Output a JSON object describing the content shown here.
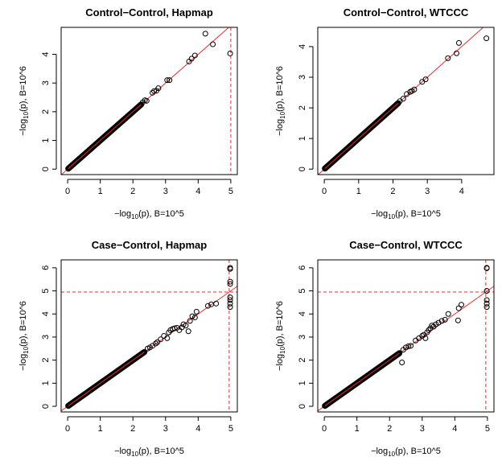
{
  "chart_data": [
    {
      "type": "scatter",
      "title": "Control−Control, Hapmap",
      "xlabel": {
        "prefix": "−log",
        "sub": "10",
        "suffix": "(p), B=10^5"
      },
      "ylabel": {
        "prefix": "−log",
        "sub": "10",
        "suffix": "(p), B=10^6"
      },
      "xlim": [
        0,
        5
      ],
      "ylim": [
        0,
        4.75
      ],
      "xticks": [
        0,
        1,
        2,
        3,
        4,
        5
      ],
      "yticks": [
        0,
        1,
        2,
        3,
        4
      ],
      "diagonal_max": 5.1,
      "diagonal_color": "#e03030",
      "point_color": "#000000",
      "ref_lines": {
        "x": 5,
        "y": null,
        "color": "#e03030",
        "style": "dashed"
      },
      "dense_segment": [
        0.02,
        2.25
      ],
      "points": [
        [
          2.3,
          2.33
        ],
        [
          2.37,
          2.4
        ],
        [
          2.42,
          2.38
        ],
        [
          2.6,
          2.66
        ],
        [
          2.65,
          2.72
        ],
        [
          2.72,
          2.73
        ],
        [
          2.78,
          2.82
        ],
        [
          3.05,
          3.1
        ],
        [
          3.12,
          3.1
        ],
        [
          3.72,
          3.75
        ],
        [
          3.8,
          3.85
        ],
        [
          3.9,
          3.96
        ],
        [
          4.22,
          4.72
        ],
        [
          4.45,
          4.35
        ],
        [
          4.98,
          4.03
        ]
      ]
    },
    {
      "type": "scatter",
      "title": "Control−Control, WTCCC",
      "xlabel": {
        "prefix": "−log",
        "sub": "10",
        "suffix": "(p), B=10^5"
      },
      "ylabel": {
        "prefix": "−log",
        "sub": "10",
        "suffix": "(p), B=10^6"
      },
      "xlim": [
        0,
        4.75
      ],
      "ylim": [
        0,
        4.45
      ],
      "xticks": [
        0,
        1,
        2,
        3,
        4
      ],
      "yticks": [
        0,
        1,
        2,
        3,
        4
      ],
      "diagonal_max": 4.9,
      "diagonal_color": "#e03030",
      "point_color": "#000000",
      "ref_lines": null,
      "dense_segment": [
        0.02,
        2.15
      ],
      "points": [
        [
          2.2,
          2.22
        ],
        [
          2.3,
          2.3
        ],
        [
          2.4,
          2.45
        ],
        [
          2.5,
          2.52
        ],
        [
          2.55,
          2.55
        ],
        [
          2.62,
          2.6
        ],
        [
          2.85,
          2.85
        ],
        [
          2.95,
          2.93
        ],
        [
          3.6,
          3.62
        ],
        [
          3.85,
          3.78
        ],
        [
          3.92,
          4.12
        ],
        [
          4.72,
          4.27
        ]
      ]
    },
    {
      "type": "scatter",
      "title": "Case−Control, Hapmap",
      "xlabel": {
        "prefix": "−log",
        "sub": "10",
        "suffix": "(p), B=10^5"
      },
      "ylabel": {
        "prefix": "−log",
        "sub": "10",
        "suffix": "(p), B=10^6"
      },
      "xlim": [
        0,
        5
      ],
      "ylim": [
        0,
        6.1
      ],
      "xticks": [
        0,
        1,
        2,
        3,
        4,
        5
      ],
      "yticks": [
        0,
        1,
        2,
        3,
        4,
        5,
        6
      ],
      "diagonal_max": 5.2,
      "diagonal_color": "#e03030",
      "point_color": "#000000",
      "ref_lines": {
        "x": 4.95,
        "y": 4.95,
        "color": "#e03030",
        "style": "dashed"
      },
      "dense_segment": [
        0.02,
        2.35
      ],
      "points": [
        [
          2.45,
          2.5
        ],
        [
          2.52,
          2.55
        ],
        [
          2.6,
          2.62
        ],
        [
          2.7,
          2.72
        ],
        [
          2.75,
          2.78
        ],
        [
          2.85,
          2.9
        ],
        [
          2.95,
          3.05
        ],
        [
          3.05,
          2.95
        ],
        [
          3.1,
          3.2
        ],
        [
          3.15,
          3.3
        ],
        [
          3.22,
          3.35
        ],
        [
          3.28,
          3.38
        ],
        [
          3.35,
          3.4
        ],
        [
          3.42,
          3.3
        ],
        [
          3.5,
          3.42
        ],
        [
          3.55,
          3.55
        ],
        [
          3.62,
          3.5
        ],
        [
          3.7,
          3.25
        ],
        [
          3.75,
          3.7
        ],
        [
          3.82,
          3.9
        ],
        [
          3.9,
          3.85
        ],
        [
          3.95,
          4.1
        ],
        [
          4.3,
          4.35
        ],
        [
          4.4,
          4.42
        ],
        [
          4.55,
          4.45
        ],
        [
          4.98,
          4.3
        ],
        [
          4.98,
          4.45
        ],
        [
          4.98,
          4.6
        ],
        [
          4.98,
          4.72
        ],
        [
          4.98,
          5.3
        ],
        [
          4.98,
          5.4
        ],
        [
          4.98,
          5.95
        ],
        [
          4.98,
          6.0
        ]
      ]
    },
    {
      "type": "scatter",
      "title": "Case−Control, WTCCC",
      "xlabel": {
        "prefix": "−log",
        "sub": "10",
        "suffix": "(p), B=10^5"
      },
      "ylabel": {
        "prefix": "−log",
        "sub": "10",
        "suffix": "(p), B=10^6"
      },
      "xlim": [
        0,
        5
      ],
      "ylim": [
        0,
        6.1
      ],
      "xticks": [
        0,
        1,
        2,
        3,
        4,
        5
      ],
      "yticks": [
        0,
        1,
        2,
        3,
        4,
        5,
        6
      ],
      "diagonal_max": 5.2,
      "diagonal_color": "#e03030",
      "point_color": "#000000",
      "ref_lines": {
        "x": 4.95,
        "y": 4.95,
        "color": "#e03030",
        "style": "dashed"
      },
      "dense_segment": [
        0.02,
        2.3
      ],
      "points": [
        [
          2.38,
          1.9
        ],
        [
          2.42,
          2.45
        ],
        [
          2.5,
          2.55
        ],
        [
          2.58,
          2.6
        ],
        [
          2.65,
          2.62
        ],
        [
          2.8,
          2.85
        ],
        [
          2.9,
          2.95
        ],
        [
          3.0,
          3.05
        ],
        [
          3.05,
          3.1
        ],
        [
          3.1,
          2.95
        ],
        [
          3.15,
          3.2
        ],
        [
          3.2,
          3.3
        ],
        [
          3.25,
          3.38
        ],
        [
          3.3,
          3.5
        ],
        [
          3.35,
          3.45
        ],
        [
          3.42,
          3.55
        ],
        [
          3.5,
          3.62
        ],
        [
          3.6,
          3.7
        ],
        [
          3.7,
          3.75
        ],
        [
          3.8,
          4.0
        ],
        [
          4.1,
          3.72
        ],
        [
          4.12,
          4.25
        ],
        [
          4.2,
          4.4
        ],
        [
          4.98,
          4.3
        ],
        [
          4.98,
          4.45
        ],
        [
          4.98,
          4.6
        ],
        [
          4.98,
          5.0
        ],
        [
          4.98,
          5.98
        ],
        [
          4.98,
          6.0
        ]
      ]
    }
  ]
}
